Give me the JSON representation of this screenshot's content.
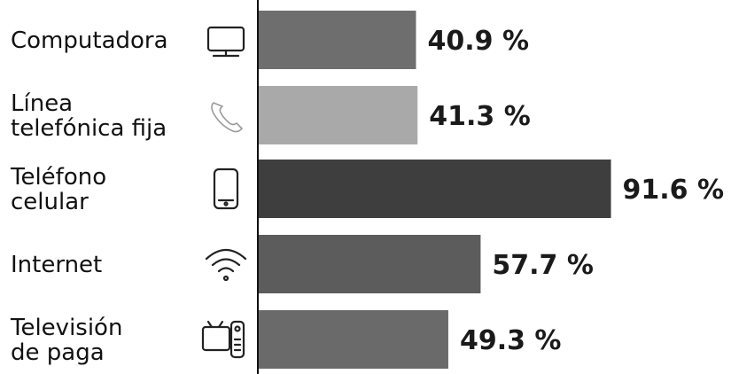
{
  "chart_data": {
    "type": "bar",
    "orientation": "horizontal",
    "categories": [
      [
        "Computadora"
      ],
      [
        "Línea",
        "telefónica fija"
      ],
      [
        "Teléfono",
        "celular"
      ],
      [
        "Internet"
      ],
      [
        "Televisión",
        "de paga"
      ]
    ],
    "values": [
      40.9,
      41.3,
      91.6,
      57.7,
      49.3
    ],
    "value_labels": [
      "40.9 %",
      "41.3 %",
      "91.6 %",
      "57.7 %",
      "49.3 %"
    ],
    "icons": [
      "computer-icon",
      "phone-icon",
      "smartphone-icon",
      "wifi-icon",
      "tv-remote-icon"
    ],
    "colors": [
      "#6e6e6e",
      "#a9a9a9",
      "#3e3e3e",
      "#5c5c5c",
      "#6a6a6a"
    ],
    "xlim": [
      0,
      100
    ],
    "grid": false,
    "legend": "none"
  }
}
